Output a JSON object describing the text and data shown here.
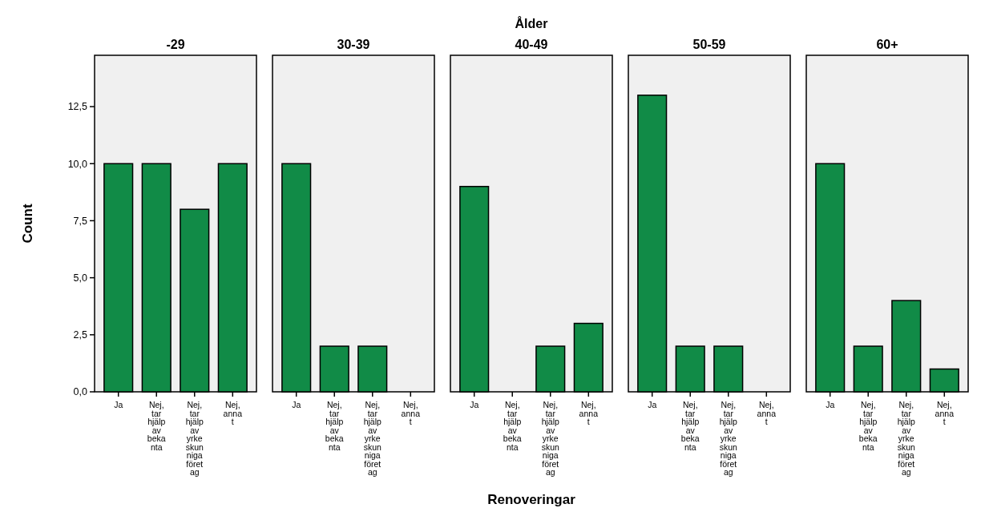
{
  "chart_data": [
    {
      "type": "bar",
      "title": "-29",
      "ylabel": "Count",
      "categories": [
        "Ja",
        "Nej, tar hjälp av bekanta",
        "Nej, tar hjälp av yrkeskunniga företag",
        "Nej, annat"
      ],
      "values": [
        10,
        10,
        8,
        10
      ],
      "color": "#118b47",
      "ylim": [
        0,
        14.75
      ],
      "yticks": [
        {
          "value": 0,
          "label": "0,0"
        },
        {
          "value": 2.5,
          "label": "2,5"
        },
        {
          "value": 5,
          "label": "5,0"
        },
        {
          "value": 7.5,
          "label": "7,5"
        },
        {
          "value": 10,
          "label": "10,0"
        },
        {
          "value": 12.5,
          "label": "12,5"
        }
      ]
    },
    {
      "type": "bar",
      "title": "30-39",
      "categories": [
        "Ja",
        "Nej, tar hjälp av bekanta",
        "Nej, tar hjälp av yrkeskunniga företag",
        "Nej, annat"
      ],
      "values": [
        10,
        2,
        2,
        0
      ],
      "color": "#118b47",
      "ylim": [
        0,
        14.75
      ],
      "tick_labels": "x"
    },
    {
      "type": "bar",
      "title": "40-49",
      "xlabel": "Renoveringar",
      "annotations": [
        "Ålder"
      ],
      "categories": [
        "Ja",
        "Nej, tar hjälp av bekanta",
        "Nej, tar hjälp av yrkeskunniga företag",
        "Nej, annat"
      ],
      "values": [
        9,
        0,
        2,
        3
      ],
      "color": "#118b47",
      "ylim": [
        0,
        14.75
      ],
      "tick_labels": "x"
    },
    {
      "type": "bar",
      "title": "50-59",
      "categories": [
        "Ja",
        "Nej, tar hjälp av bekanta",
        "Nej, tar hjälp av yrkeskunniga företag",
        "Nej, annat"
      ],
      "values": [
        13,
        2,
        2,
        0
      ],
      "color": "#118b47",
      "ylim": [
        0,
        14.75
      ],
      "tick_labels": "x"
    },
    {
      "type": "bar",
      "title": "60+",
      "categories": [
        "Ja",
        "Nej, tar hjälp av bekanta",
        "Nej, tar hjälp av yrkeskunniga företag",
        "Nej, annat"
      ],
      "values": [
        10,
        2,
        4,
        1
      ],
      "color": "#118b47",
      "ylim": [
        0,
        14.75
      ],
      "tick_labels": "x"
    }
  ]
}
